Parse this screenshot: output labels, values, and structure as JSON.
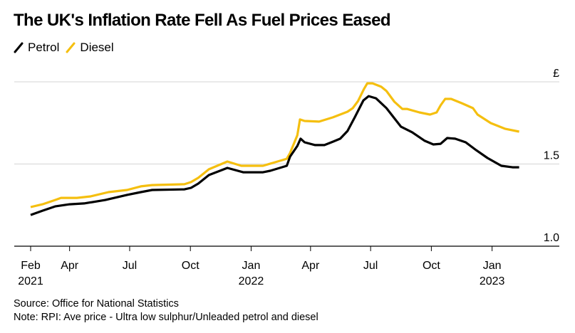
{
  "title": "The UK's Inflation Rate Fell As Fuel Prices Eased",
  "legend": [
    {
      "name": "Petrol",
      "color": "#000000"
    },
    {
      "name": "Diesel",
      "color": "#F5BF0F"
    }
  ],
  "footer": {
    "source": "Source: Office for National Statistics",
    "note": "Note: RPI: Ave price - Ultra low sulphur/Unleaded petrol and diesel"
  },
  "chart_data": {
    "type": "line",
    "title": "The UK's Inflation Rate Fell As Fuel Prices Eased",
    "xlabel": "",
    "ylabel": "£",
    "ylim": [
      1.0,
      2.0
    ],
    "xlim": [
      "2021-02-01",
      "2023-02-11"
    ],
    "grid": true,
    "legend_position": "top-left",
    "y_ticks": [
      {
        "value": 1.0,
        "label": "1.0"
      },
      {
        "value": 1.5,
        "label": "1.5"
      },
      {
        "value": 2.0,
        "label": "£"
      }
    ],
    "x_ticks": [
      {
        "date": "2021-02-01",
        "label": "Feb",
        "sublabel": "2021"
      },
      {
        "date": "2021-04-01",
        "label": "Apr",
        "sublabel": ""
      },
      {
        "date": "2021-07-01",
        "label": "Jul",
        "sublabel": ""
      },
      {
        "date": "2021-10-01",
        "label": "Oct",
        "sublabel": ""
      },
      {
        "date": "2022-01-01",
        "label": "Jan",
        "sublabel": "2022"
      },
      {
        "date": "2022-04-01",
        "label": "Apr",
        "sublabel": ""
      },
      {
        "date": "2022-07-01",
        "label": "Jul",
        "sublabel": ""
      },
      {
        "date": "2022-10-01",
        "label": "Oct",
        "sublabel": ""
      },
      {
        "date": "2023-01-01",
        "label": "Jan",
        "sublabel": "2023"
      }
    ],
    "series": [
      {
        "name": "Petrol",
        "color": "#000000",
        "points": [
          [
            "2021-02-01",
            1.19
          ],
          [
            "2021-02-19",
            1.216
          ],
          [
            "2021-03-10",
            1.242
          ],
          [
            "2021-04-01",
            1.255
          ],
          [
            "2021-04-23",
            1.26
          ],
          [
            "2021-05-25",
            1.281
          ],
          [
            "2021-06-27",
            1.312
          ],
          [
            "2021-07-18",
            1.329
          ],
          [
            "2021-08-04",
            1.342
          ],
          [
            "2021-09-22",
            1.346
          ],
          [
            "2021-10-02",
            1.355
          ],
          [
            "2021-10-13",
            1.381
          ],
          [
            "2021-10-29",
            1.433
          ],
          [
            "2021-11-26",
            1.476
          ],
          [
            "2021-12-20",
            1.45
          ],
          [
            "2022-01-19",
            1.45
          ],
          [
            "2022-01-30",
            1.459
          ],
          [
            "2022-02-24",
            1.489
          ],
          [
            "2022-03-01",
            1.545
          ],
          [
            "2022-03-12",
            1.61
          ],
          [
            "2022-03-17",
            1.654
          ],
          [
            "2022-03-23",
            1.632
          ],
          [
            "2022-04-08",
            1.615
          ],
          [
            "2022-04-22",
            1.615
          ],
          [
            "2022-05-05",
            1.636
          ],
          [
            "2022-05-16",
            1.654
          ],
          [
            "2022-05-27",
            1.701
          ],
          [
            "2022-06-07",
            1.784
          ],
          [
            "2022-06-20",
            1.887
          ],
          [
            "2022-06-28",
            1.913
          ],
          [
            "2022-07-09",
            1.9
          ],
          [
            "2022-07-25",
            1.84
          ],
          [
            "2022-08-11",
            1.753
          ],
          [
            "2022-08-16",
            1.727
          ],
          [
            "2022-09-02",
            1.693
          ],
          [
            "2022-09-21",
            1.641
          ],
          [
            "2022-10-04",
            1.619
          ],
          [
            "2022-10-15",
            1.623
          ],
          [
            "2022-10-25",
            1.658
          ],
          [
            "2022-11-06",
            1.654
          ],
          [
            "2022-11-22",
            1.632
          ],
          [
            "2022-12-08",
            1.584
          ],
          [
            "2022-12-25",
            1.537
          ],
          [
            "2023-01-15",
            1.489
          ],
          [
            "2023-02-01",
            1.48
          ],
          [
            "2023-02-11",
            1.48
          ]
        ]
      },
      {
        "name": "Diesel",
        "color": "#F5BF0F",
        "points": [
          [
            "2021-02-01",
            1.238
          ],
          [
            "2021-02-19",
            1.255
          ],
          [
            "2021-03-10",
            1.281
          ],
          [
            "2021-03-19",
            1.294
          ],
          [
            "2021-04-12",
            1.294
          ],
          [
            "2021-05-03",
            1.303
          ],
          [
            "2021-05-30",
            1.329
          ],
          [
            "2021-06-27",
            1.342
          ],
          [
            "2021-07-18",
            1.364
          ],
          [
            "2021-08-04",
            1.372
          ],
          [
            "2021-09-22",
            1.377
          ],
          [
            "2021-10-02",
            1.39
          ],
          [
            "2021-10-13",
            1.416
          ],
          [
            "2021-10-29",
            1.468
          ],
          [
            "2021-11-26",
            1.515
          ],
          [
            "2021-12-17",
            1.489
          ],
          [
            "2022-01-19",
            1.489
          ],
          [
            "2022-02-10",
            1.515
          ],
          [
            "2022-02-24",
            1.532
          ],
          [
            "2022-03-01",
            1.567
          ],
          [
            "2022-03-12",
            1.675
          ],
          [
            "2022-03-16",
            1.771
          ],
          [
            "2022-03-23",
            1.762
          ],
          [
            "2022-04-14",
            1.758
          ],
          [
            "2022-05-05",
            1.784
          ],
          [
            "2022-05-27",
            1.818
          ],
          [
            "2022-06-04",
            1.84
          ],
          [
            "2022-06-12",
            1.883
          ],
          [
            "2022-06-21",
            1.957
          ],
          [
            "2022-06-26",
            1.991
          ],
          [
            "2022-07-04",
            1.991
          ],
          [
            "2022-07-17",
            1.97
          ],
          [
            "2022-07-25",
            1.944
          ],
          [
            "2022-08-06",
            1.879
          ],
          [
            "2022-08-18",
            1.835
          ],
          [
            "2022-08-25",
            1.835
          ],
          [
            "2022-09-13",
            1.814
          ],
          [
            "2022-09-29",
            1.801
          ],
          [
            "2022-10-09",
            1.814
          ],
          [
            "2022-10-15",
            1.857
          ],
          [
            "2022-10-22",
            1.896
          ],
          [
            "2022-10-31",
            1.896
          ],
          [
            "2022-11-16",
            1.87
          ],
          [
            "2022-12-03",
            1.84
          ],
          [
            "2022-12-10",
            1.801
          ],
          [
            "2022-12-30",
            1.749
          ],
          [
            "2023-01-21",
            1.714
          ],
          [
            "2023-02-11",
            1.697
          ]
        ]
      }
    ]
  }
}
